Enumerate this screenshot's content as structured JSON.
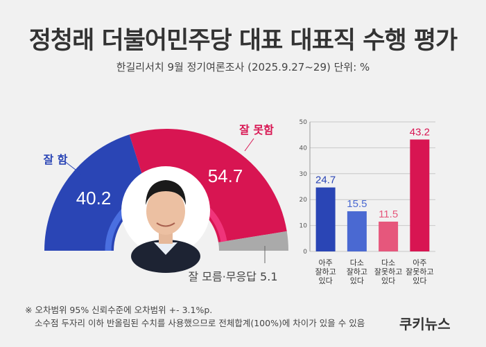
{
  "header": {
    "title": "정청래 더불어민주당 대표 대표직 수행 평가",
    "subtitle": "한길리서치 9월 정기여론조사 (2025.9.27~29) 단위: %"
  },
  "colors": {
    "good": "#2a45b5",
    "bad": "#d81552",
    "unknown": "#aaaaaa",
    "good_light": "#4a69d2",
    "bad_light": "#e6577c"
  },
  "chart_data": [
    {
      "type": "pie",
      "shape": "semicircle-donut",
      "slices": [
        {
          "label": "잘 함",
          "value": 40.2,
          "color": "#2a45b5"
        },
        {
          "label": "잘 못함",
          "value": 54.7,
          "color": "#d81552"
        },
        {
          "label": "잘 모름·무응답",
          "value": 5.1,
          "color": "#aaaaaa"
        }
      ],
      "labels": {
        "good": "잘 함",
        "bad": "잘 못함",
        "unknown": "잘 모름·무응답 5.1",
        "good_value": "40.2",
        "bad_value": "54.7"
      }
    },
    {
      "type": "bar",
      "categories": [
        [
          "아주",
          "잘하고",
          "있다"
        ],
        [
          "다소",
          "잘하고",
          "있다"
        ],
        [
          "다소",
          "잘못하고",
          "있다"
        ],
        [
          "아주",
          "잘못하고",
          "있다"
        ]
      ],
      "values": [
        24.7,
        15.5,
        11.5,
        43.2
      ],
      "value_labels": [
        "24.7",
        "15.5",
        "11.5",
        "43.2"
      ],
      "colors": [
        "#2a45b5",
        "#4a69d2",
        "#e6577c",
        "#d81552"
      ],
      "ylim": [
        0,
        50
      ],
      "yticks": [
        "0",
        "10",
        "20",
        "30",
        "40",
        "50"
      ],
      "grid": true
    }
  ],
  "footnote": {
    "line1": "※ 오차범위 95% 신뢰수준에 오차범위 +- 3.1%p.",
    "line2": "소수점 두자리 이하 반올림된 수치를 사용했으므로 전체합계(100%)에 차이가 있을 수 있음"
  },
  "brand": "쿠키뉴스"
}
